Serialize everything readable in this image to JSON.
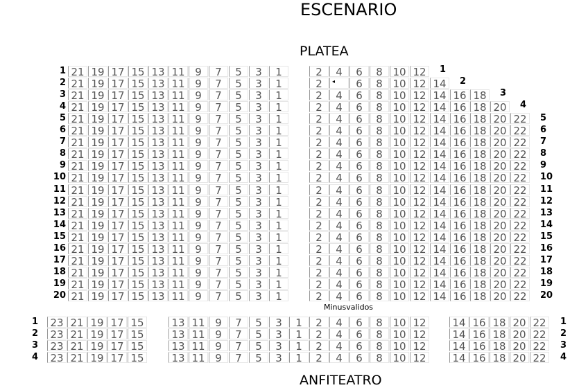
{
  "titles": {
    "stage": "ESCENARIO",
    "platea": "PLATEA",
    "anfiteatro": "ANFITEATRO",
    "minusvalidos": "Minusvalidos"
  },
  "platea": {
    "left_seats": [
      "21",
      "19",
      "17",
      "15",
      "13",
      "11",
      "9",
      "7",
      "5",
      "3",
      "1"
    ],
    "rows": [
      {
        "label": "1",
        "right": [
          "2",
          "4",
          "6",
          "8",
          "10",
          "12"
        ]
      },
      {
        "label": "2",
        "right": [
          "2",
          "◂",
          "6",
          "8",
          "10",
          "12",
          "14"
        ],
        "accessible_seat_index": 1
      },
      {
        "label": "3",
        "right": [
          "2",
          "4",
          "6",
          "8",
          "10",
          "12",
          "14",
          "16",
          "18"
        ]
      },
      {
        "label": "4",
        "right": [
          "2",
          "4",
          "6",
          "8",
          "10",
          "12",
          "14",
          "16",
          "18",
          "20"
        ]
      },
      {
        "label": "5",
        "right": [
          "2",
          "4",
          "6",
          "8",
          "10",
          "12",
          "14",
          "16",
          "18",
          "20",
          "22"
        ]
      },
      {
        "label": "6",
        "right": [
          "2",
          "4",
          "6",
          "8",
          "10",
          "12",
          "14",
          "16",
          "18",
          "20",
          "22"
        ]
      },
      {
        "label": "7",
        "right": [
          "2",
          "4",
          "6",
          "8",
          "10",
          "12",
          "14",
          "16",
          "18",
          "20",
          "22"
        ]
      },
      {
        "label": "8",
        "right": [
          "2",
          "4",
          "6",
          "8",
          "10",
          "12",
          "14",
          "16",
          "18",
          "20",
          "22"
        ]
      },
      {
        "label": "9",
        "right": [
          "2",
          "4",
          "6",
          "8",
          "10",
          "12",
          "14",
          "16",
          "18",
          "20",
          "22"
        ]
      },
      {
        "label": "10",
        "right": [
          "2",
          "4",
          "6",
          "8",
          "10",
          "12",
          "14",
          "16",
          "18",
          "20",
          "22"
        ]
      },
      {
        "label": "11",
        "right": [
          "2",
          "4",
          "6",
          "8",
          "10",
          "12",
          "14",
          "16",
          "18",
          "20",
          "22"
        ]
      },
      {
        "label": "12",
        "right": [
          "2",
          "4",
          "6",
          "8",
          "10",
          "12",
          "14",
          "16",
          "18",
          "20",
          "22"
        ]
      },
      {
        "label": "13",
        "right": [
          "2",
          "4",
          "6",
          "8",
          "10",
          "12",
          "14",
          "16",
          "18",
          "20",
          "22"
        ]
      },
      {
        "label": "14",
        "right": [
          "2",
          "4",
          "6",
          "8",
          "10",
          "12",
          "14",
          "16",
          "18",
          "20",
          "22"
        ]
      },
      {
        "label": "15",
        "right": [
          "2",
          "4",
          "6",
          "8",
          "10",
          "12",
          "14",
          "16",
          "18",
          "20",
          "22"
        ]
      },
      {
        "label": "16",
        "right": [
          "2",
          "4",
          "6",
          "8",
          "10",
          "12",
          "14",
          "16",
          "18",
          "20",
          "22"
        ]
      },
      {
        "label": "17",
        "right": [
          "2",
          "4",
          "6",
          "8",
          "10",
          "12",
          "14",
          "16",
          "18",
          "20",
          "22"
        ]
      },
      {
        "label": "18",
        "right": [
          "2",
          "4",
          "6",
          "8",
          "10",
          "12",
          "14",
          "16",
          "18",
          "20",
          "22"
        ]
      },
      {
        "label": "19",
        "right": [
          "2",
          "4",
          "6",
          "8",
          "10",
          "12",
          "14",
          "16",
          "18",
          "20",
          "22"
        ]
      },
      {
        "label": "20",
        "right": [
          "2",
          "4",
          "6",
          "8",
          "10",
          "12",
          "14",
          "16",
          "18",
          "20",
          "22"
        ]
      }
    ]
  },
  "anfiteatro": {
    "rows": [
      "1",
      "2",
      "3",
      "4"
    ],
    "blocks": [
      [
        "23",
        "21",
        "19",
        "17",
        "15"
      ],
      [
        "13",
        "11",
        "9",
        "7",
        "5",
        "3",
        "1"
      ],
      [
        "2",
        "4",
        "6",
        "8",
        "10",
        "12"
      ],
      [
        "14",
        "16",
        "18",
        "20",
        "22"
      ]
    ]
  }
}
